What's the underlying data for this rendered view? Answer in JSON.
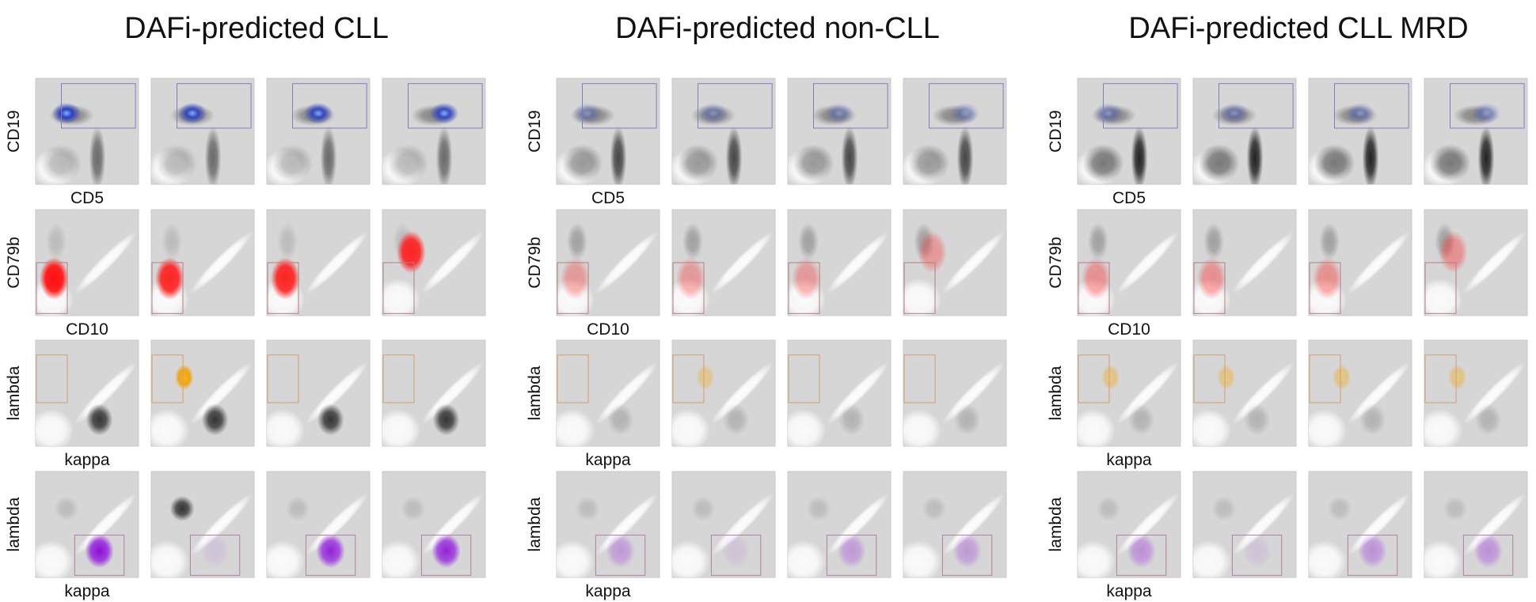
{
  "panels": [
    {
      "title": "DAFi-predicted CLL",
      "rows": [
        {
          "ylabel": "CD19",
          "xlabel": "CD5"
        },
        {
          "ylabel": "CD79b",
          "xlabel": "CD10"
        },
        {
          "ylabel": "lambda",
          "xlabel": "kappa"
        },
        {
          "ylabel": "lambda",
          "xlabel": "kappa"
        }
      ]
    },
    {
      "title": "DAFi-predicted non-CLL",
      "rows": [
        {
          "ylabel": "CD19",
          "xlabel": "CD5"
        },
        {
          "ylabel": "CD79b",
          "xlabel": "CD10"
        },
        {
          "ylabel": "lambda",
          "xlabel": "kappa"
        },
        {
          "ylabel": "lambda",
          "xlabel": "kappa"
        }
      ]
    },
    {
      "title": "DAFi-predicted CLL MRD",
      "rows": [
        {
          "ylabel": "CD19",
          "xlabel": "CD5"
        },
        {
          "ylabel": "CD79b",
          "xlabel": "CD10"
        },
        {
          "ylabel": "lambda",
          "xlabel": "kappa"
        },
        {
          "ylabel": "lambda",
          "xlabel": "kappa"
        }
      ]
    }
  ]
}
